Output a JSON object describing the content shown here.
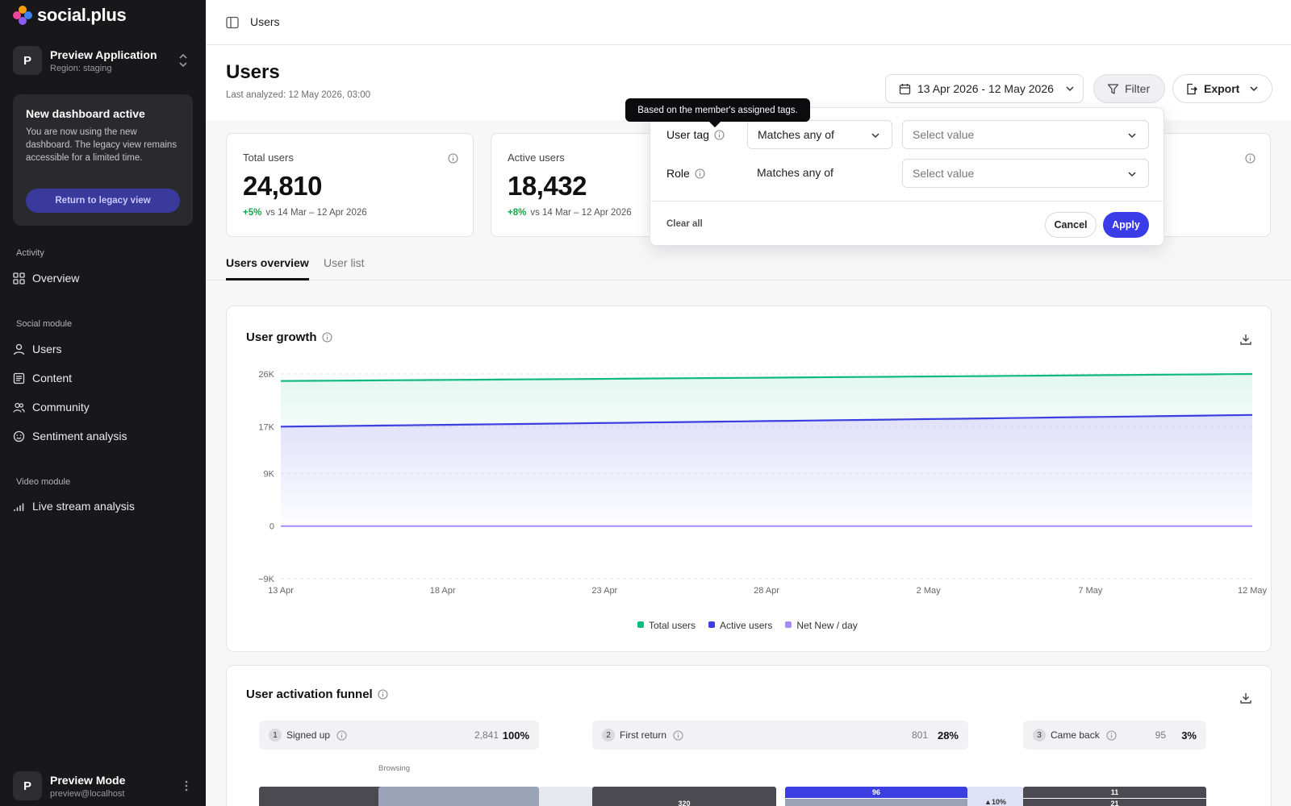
{
  "brand": {
    "name": "social.plus"
  },
  "app_switcher": {
    "avatar": "P",
    "name": "Preview Application",
    "region": "Region: staging"
  },
  "notice": {
    "title": "New dashboard active",
    "text": "You are now using the new dashboard. The legacy view remains accessible for a limited time.",
    "button": "Return to legacy view"
  },
  "nav": {
    "activity_label": "Activity",
    "overview": "Overview",
    "social_label": "Social module",
    "users": "Users",
    "content": "Content",
    "community": "Community",
    "sentiment": "Sentiment analysis",
    "video_label": "Video module",
    "live_stream": "Live stream analysis"
  },
  "user_footer": {
    "avatar": "P",
    "name": "Preview Mode",
    "email": "preview@localhost"
  },
  "breadcrumb": "Users",
  "page": {
    "title": "Users",
    "last_analyzed": "Last analyzed: 12 May 2026, 03:00"
  },
  "toolbar": {
    "date_range": "13 Apr 2026 - 12 May 2026",
    "filter": "Filter",
    "export": "Export"
  },
  "kpis": [
    {
      "label": "Total users",
      "value": "24,810",
      "delta": "+5%",
      "compare": "vs 14 Mar – 12 Apr 2026"
    },
    {
      "label": "Active users",
      "value": "18,432",
      "delta": "+8%",
      "compare": "vs 14 Mar – 12 Apr 2026"
    }
  ],
  "tabs": {
    "overview": "Users overview",
    "list": "User list"
  },
  "filter_popover": {
    "tooltip": "Based on the member's assigned tags.",
    "rows": [
      {
        "label": "User tag",
        "operator": "Matches any of",
        "value_placeholder": "Select value"
      },
      {
        "label": "Role",
        "operator": "Matches any of",
        "value_placeholder": "Select value"
      }
    ],
    "clear_all": "Clear all",
    "cancel": "Cancel",
    "apply": "Apply"
  },
  "growth_card": {
    "title": "User growth"
  },
  "chart_data": {
    "type": "area",
    "title": "User growth",
    "xlabel": "",
    "ylabel": "",
    "x_ticks": [
      "13 Apr",
      "18 Apr",
      "23 Apr",
      "28 Apr",
      "2 May",
      "7 May",
      "12 May"
    ],
    "y_ticks": [
      "26K",
      "17K",
      "9K",
      "0",
      "−9K"
    ],
    "y_tick_values": [
      26000,
      17000,
      9000,
      0,
      -9000
    ],
    "ylim": [
      -9000,
      26000
    ],
    "x_days": 29,
    "grid": true,
    "legend": "bottom-center",
    "series": [
      {
        "name": "Total users",
        "color": "#10b981",
        "start": 24800,
        "end": 26000
      },
      {
        "name": "Active users",
        "color": "#3b3ee0",
        "start": 17000,
        "end": 19000
      },
      {
        "name": "Net New / day",
        "color": "#a78bfa",
        "start": 0,
        "end": 0
      }
    ]
  },
  "funnel_card": {
    "title": "User activation funnel",
    "steps": [
      {
        "num": "1",
        "label": "Signed up",
        "count": "2,841",
        "pct": "100%"
      },
      {
        "num": "2",
        "label": "First return",
        "count": "801",
        "pct": "28%"
      },
      {
        "num": "3",
        "label": "Came back",
        "count": "95",
        "pct": "3%"
      }
    ],
    "browsing_label": "Browsing",
    "bar_labels": {
      "b320": "320",
      "b96": "96",
      "up10": "▲10%",
      "b11": "11",
      "b21": "21"
    }
  },
  "colors": {
    "accent": "#3a3ce8",
    "sidebar": "#18181a",
    "positive": "#16a34a"
  }
}
